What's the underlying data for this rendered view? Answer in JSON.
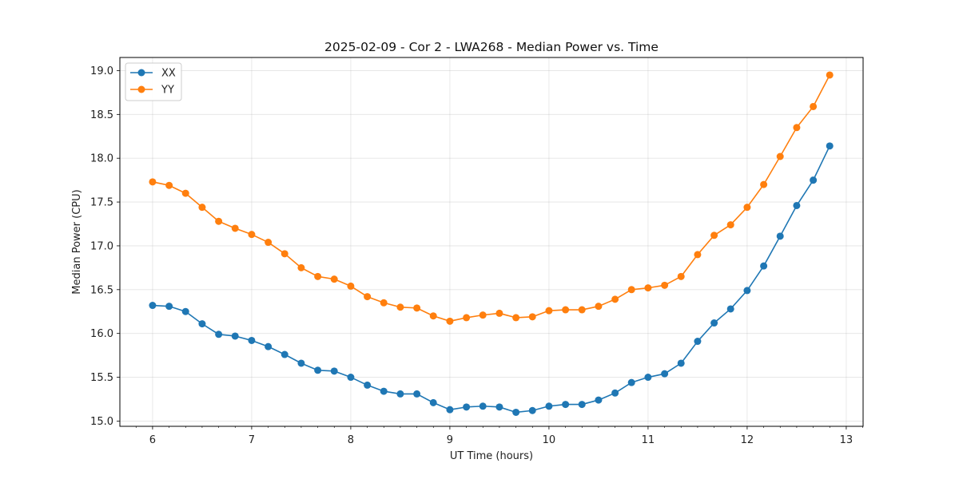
{
  "chart_data": {
    "type": "line",
    "title": "2025-02-09 - Cor 2 - LWA268 - Median Power vs. Time",
    "xlabel": "UT Time (hours)",
    "ylabel": "Median Power (CPU)",
    "xlim": [
      5.67,
      13.17
    ],
    "ylim": [
      14.94,
      19.15
    ],
    "xticks": [
      6,
      7,
      8,
      9,
      10,
      11,
      12,
      13
    ],
    "xtick_labels": [
      "6",
      "7",
      "8",
      "9",
      "10",
      "11",
      "12",
      "13"
    ],
    "yticks": [
      15.0,
      15.5,
      16.0,
      16.5,
      17.0,
      17.5,
      18.0,
      18.5,
      19.0
    ],
    "ytick_labels": [
      "15.0",
      "15.5",
      "16.0",
      "16.5",
      "17.0",
      "17.5",
      "18.0",
      "18.5",
      "19.0"
    ],
    "grid": true,
    "legend_position": "top-left",
    "x": [
      6.0,
      6.167,
      6.333,
      6.5,
      6.667,
      6.833,
      7.0,
      7.167,
      7.333,
      7.5,
      7.667,
      7.833,
      8.0,
      8.167,
      8.333,
      8.5,
      8.667,
      8.833,
      9.0,
      9.167,
      9.333,
      9.5,
      9.667,
      9.833,
      10.0,
      10.167,
      10.333,
      10.5,
      10.667,
      10.833,
      11.0,
      11.167,
      11.333,
      11.5,
      11.667,
      11.833,
      12.0,
      12.167,
      12.333,
      12.5,
      12.667,
      12.833
    ],
    "series": [
      {
        "name": "XX",
        "color": "#1f77b4",
        "values": [
          16.32,
          16.31,
          16.25,
          16.11,
          15.99,
          15.97,
          15.92,
          15.85,
          15.76,
          15.66,
          15.58,
          15.57,
          15.5,
          15.41,
          15.34,
          15.31,
          15.31,
          15.21,
          15.13,
          15.16,
          15.17,
          15.16,
          15.1,
          15.12,
          15.17,
          15.19,
          15.19,
          15.24,
          15.32,
          15.44,
          15.5,
          15.54,
          15.66,
          15.91,
          16.12,
          16.28,
          16.49,
          16.77,
          17.11,
          17.46,
          17.75,
          18.14
        ]
      },
      {
        "name": "YY",
        "color": "#ff7f0e",
        "values": [
          17.73,
          17.69,
          17.6,
          17.44,
          17.28,
          17.2,
          17.13,
          17.04,
          16.91,
          16.75,
          16.65,
          16.62,
          16.54,
          16.42,
          16.35,
          16.3,
          16.29,
          16.2,
          16.14,
          16.18,
          16.21,
          16.23,
          16.18,
          16.19,
          16.26,
          16.27,
          16.27,
          16.31,
          16.39,
          16.5,
          16.52,
          16.55,
          16.65,
          16.9,
          17.12,
          17.24,
          17.44,
          17.7,
          18.02,
          18.35,
          18.59,
          18.95
        ]
      }
    ]
  }
}
